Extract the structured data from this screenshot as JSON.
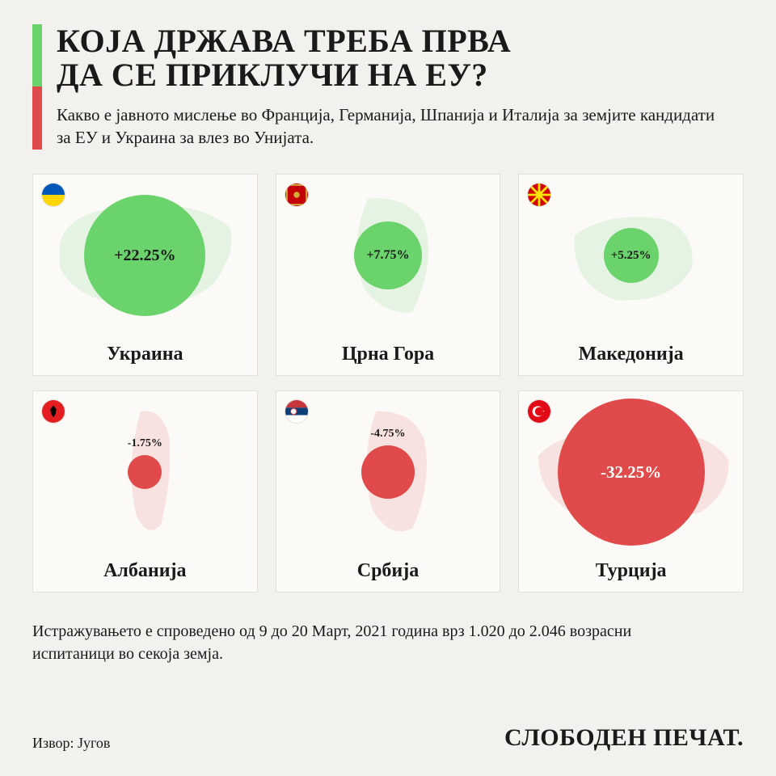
{
  "colors": {
    "background": "#f3f1ed",
    "card_bg": "#fbfaf7",
    "card_border": "#e3e0d8",
    "text": "#1a1a1a",
    "positive": "#6bd36b",
    "positive_silhouette": "#bfe8bf",
    "negative": "#e04a4a",
    "negative_silhouette": "#f0b8b8"
  },
  "header": {
    "title_line1": "КОЈА ДРЖАВА ТРЕБА ПРВА",
    "title_line2": "ДА СЕ ПРИКЛУЧИ НА ЕУ?",
    "subtitle": "Какво е јавното мислење во Франција, Германија, Шпанија и Италија за земјите кандидати за ЕУ и Украина за влез во Унијата."
  },
  "countries": [
    {
      "name": "Украина",
      "value": "+22.25%",
      "positive": true,
      "bubble_diameter": 150,
      "bubble_font": 20,
      "silhouette_w": 230,
      "silhouette_h": 150,
      "flag": {
        "type": "ukraine"
      }
    },
    {
      "name": "Црна Гора",
      "value": "+7.75%",
      "positive": true,
      "bubble_diameter": 84,
      "bubble_font": 16,
      "silhouette_w": 130,
      "silhouette_h": 160,
      "flag": {
        "type": "montenegro"
      }
    },
    {
      "name": "Македонија",
      "value": "+5.25%",
      "positive": true,
      "bubble_diameter": 68,
      "bubble_font": 15,
      "silhouette_w": 180,
      "silhouette_h": 130,
      "flag": {
        "type": "macedonia"
      }
    },
    {
      "name": "Албанија",
      "value": "-1.75%",
      "positive": false,
      "bubble_diameter": 42,
      "bubble_font": 14,
      "label_offset": true,
      "silhouette_w": 80,
      "silhouette_h": 170,
      "flag": {
        "type": "albania"
      }
    },
    {
      "name": "Србија",
      "value": "-4.75%",
      "positive": false,
      "bubble_diameter": 66,
      "bubble_font": 14,
      "label_offset": true,
      "silhouette_w": 110,
      "silhouette_h": 170,
      "flag": {
        "type": "serbia"
      }
    },
    {
      "name": "Турција",
      "value": "-32.25%",
      "positive": false,
      "bubble_diameter": 182,
      "bubble_font": 21,
      "silhouette_w": 250,
      "silhouette_h": 140,
      "flag": {
        "type": "turkey"
      }
    }
  ],
  "footnote": "Истражувањето е спроведено од 9 до 20 Март, 2021 година врз 1.020 до 2.046 возрасни испитаници во секоја земја.",
  "source_label": "Извор: Југов",
  "brand": "СЛОБОДЕН ПЕЧАТ."
}
